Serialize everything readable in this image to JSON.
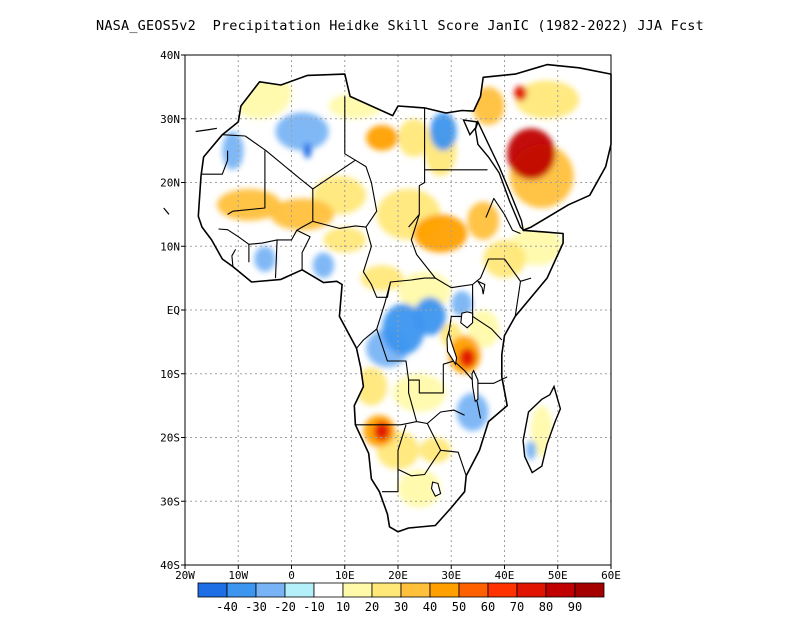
{
  "title": "NASA_GEOS5v2  Precipitation Heidke Skill Score JanIC (1982-2022) JJA Fcst",
  "map": {
    "lon_range": [
      -20,
      60
    ],
    "lat_range": [
      -40,
      40
    ],
    "lon_ticks": [
      {
        "value": -20,
        "label": "20W"
      },
      {
        "value": -10,
        "label": "10W"
      },
      {
        "value": 0,
        "label": "0"
      },
      {
        "value": 10,
        "label": "10E"
      },
      {
        "value": 20,
        "label": "20E"
      },
      {
        "value": 30,
        "label": "30E"
      },
      {
        "value": 40,
        "label": "40E"
      },
      {
        "value": 50,
        "label": "50E"
      },
      {
        "value": 60,
        "label": "60E"
      }
    ],
    "lat_ticks": [
      {
        "value": 40,
        "label": "40N"
      },
      {
        "value": 30,
        "label": "30N"
      },
      {
        "value": 20,
        "label": "20N"
      },
      {
        "value": 10,
        "label": "10N"
      },
      {
        "value": 0,
        "label": "EQ"
      },
      {
        "value": -10,
        "label": "10S"
      },
      {
        "value": -20,
        "label": "20S"
      },
      {
        "value": -30,
        "label": "30S"
      },
      {
        "value": -40,
        "label": "40S"
      }
    ],
    "grid": "dotted",
    "grid_color": "#a0a0a0"
  },
  "colorbar": {
    "colors": [
      "#1e6ee6",
      "#3c96f0",
      "#78b4f5",
      "#b4f0fa",
      "#ffffff",
      "#fffaaa",
      "#ffe878",
      "#ffc03c",
      "#ffa000",
      "#ff6000",
      "#ff3200",
      "#e11400",
      "#c00000",
      "#a50000"
    ],
    "labels": [
      "-40",
      "-30",
      "-20",
      "-10",
      "10",
      "20",
      "30",
      "40",
      "50",
      "60",
      "70",
      "80",
      "90"
    ]
  },
  "regions": [
    {
      "lon": 45,
      "lat": 24.5,
      "level": 80,
      "rx": 4.5,
      "ry": 4
    },
    {
      "lon": 43,
      "lat": 34,
      "level": 70,
      "rx": 1.2,
      "ry": 1.2
    },
    {
      "lon": 37,
      "lat": 32,
      "level": 30,
      "rx": 3,
      "ry": 3
    },
    {
      "lon": 48,
      "lat": 33,
      "level": 20,
      "rx": 6,
      "ry": 3
    },
    {
      "lon": 47,
      "lat": 21,
      "level": 30,
      "rx": 6,
      "ry": 5
    },
    {
      "lon": 17,
      "lat": 27,
      "level": 40,
      "rx": 3,
      "ry": 2
    },
    {
      "lon": 23,
      "lat": 27,
      "level": 20,
      "rx": 3,
      "ry": 3
    },
    {
      "lon": 28,
      "lat": 25,
      "level": 20,
      "rx": 3,
      "ry": 4
    },
    {
      "lon": 28.5,
      "lat": 28,
      "level": -20,
      "rx": 2.5,
      "ry": 3
    },
    {
      "lon": 2,
      "lat": 28,
      "level": -10,
      "rx": 5,
      "ry": 3
    },
    {
      "lon": -11,
      "lat": 25,
      "level": -10,
      "rx": 2,
      "ry": 3
    },
    {
      "lon": 3,
      "lat": 25,
      "level": -30,
      "rx": 0.8,
      "ry": 1.2
    },
    {
      "lon": 12,
      "lat": 32,
      "level": 10,
      "rx": 5,
      "ry": 2
    },
    {
      "lon": -6,
      "lat": 34,
      "level": 10,
      "rx": 6,
      "ry": 4
    },
    {
      "lon": -8,
      "lat": 16.5,
      "level": 30,
      "rx": 6,
      "ry": 2.5
    },
    {
      "lon": 2,
      "lat": 15,
      "level": 30,
      "rx": 6,
      "ry": 2.5
    },
    {
      "lon": 9,
      "lat": 18,
      "level": 20,
      "rx": 5,
      "ry": 3
    },
    {
      "lon": 10,
      "lat": 11,
      "level": 20,
      "rx": 4,
      "ry": 2
    },
    {
      "lon": 22,
      "lat": 15,
      "level": 20,
      "rx": 6,
      "ry": 4
    },
    {
      "lon": 28,
      "lat": 12,
      "level": 40,
      "rx": 5,
      "ry": 3
    },
    {
      "lon": 36,
      "lat": 14,
      "level": 30,
      "rx": 3,
      "ry": 3
    },
    {
      "lon": 40,
      "lat": 8,
      "level": 20,
      "rx": 4,
      "ry": 3
    },
    {
      "lon": 46,
      "lat": 10,
      "level": 10,
      "rx": 5,
      "ry": 3
    },
    {
      "lon": 17,
      "lat": 5,
      "level": 20,
      "rx": 4,
      "ry": 2
    },
    {
      "lon": 25,
      "lat": 3,
      "level": 10,
      "rx": 5,
      "ry": 3
    },
    {
      "lon": -5,
      "lat": 8,
      "level": -10,
      "rx": 2,
      "ry": 2
    },
    {
      "lon": 6,
      "lat": 7,
      "level": -10,
      "rx": 2,
      "ry": 2
    },
    {
      "lon": 21,
      "lat": -3,
      "level": -20,
      "rx": 4,
      "ry": 4
    },
    {
      "lon": 26,
      "lat": -1,
      "level": -20,
      "rx": 3,
      "ry": 3
    },
    {
      "lon": 18,
      "lat": -6,
      "level": -10,
      "rx": 4,
      "ry": 3
    },
    {
      "lon": 32,
      "lat": 1,
      "level": -10,
      "rx": 2,
      "ry": 2
    },
    {
      "lon": 33,
      "lat": -7.5,
      "level": 70,
      "rx": 1.5,
      "ry": 1.5
    },
    {
      "lon": 32.5,
      "lat": -7,
      "level": 40,
      "rx": 3,
      "ry": 3
    },
    {
      "lon": 30,
      "lat": -4,
      "level": 20,
      "rx": 2,
      "ry": 2
    },
    {
      "lon": 36,
      "lat": -3,
      "level": 10,
      "rx": 3,
      "ry": 3
    },
    {
      "lon": 15,
      "lat": -12,
      "level": 20,
      "rx": 3,
      "ry": 3
    },
    {
      "lon": 24,
      "lat": -13,
      "level": 10,
      "rx": 5,
      "ry": 3
    },
    {
      "lon": 34,
      "lat": -16,
      "level": -10,
      "rx": 3,
      "ry": 3
    },
    {
      "lon": 17,
      "lat": -19,
      "level": 70,
      "rx": 1.5,
      "ry": 1.5
    },
    {
      "lon": 16.5,
      "lat": -19,
      "level": 40,
      "rx": 3,
      "ry": 2.5
    },
    {
      "lon": 20,
      "lat": -22,
      "level": 20,
      "rx": 4,
      "ry": 3
    },
    {
      "lon": 27,
      "lat": -22,
      "level": 20,
      "rx": 3,
      "ry": 2
    },
    {
      "lon": 24,
      "lat": -28,
      "level": 10,
      "rx": 4,
      "ry": 3
    },
    {
      "lon": 47,
      "lat": -19,
      "level": 10,
      "rx": 2,
      "ry": 4
    },
    {
      "lon": 45,
      "lat": -22,
      "level": -10,
      "rx": 1,
      "ry": 1.5
    }
  ]
}
